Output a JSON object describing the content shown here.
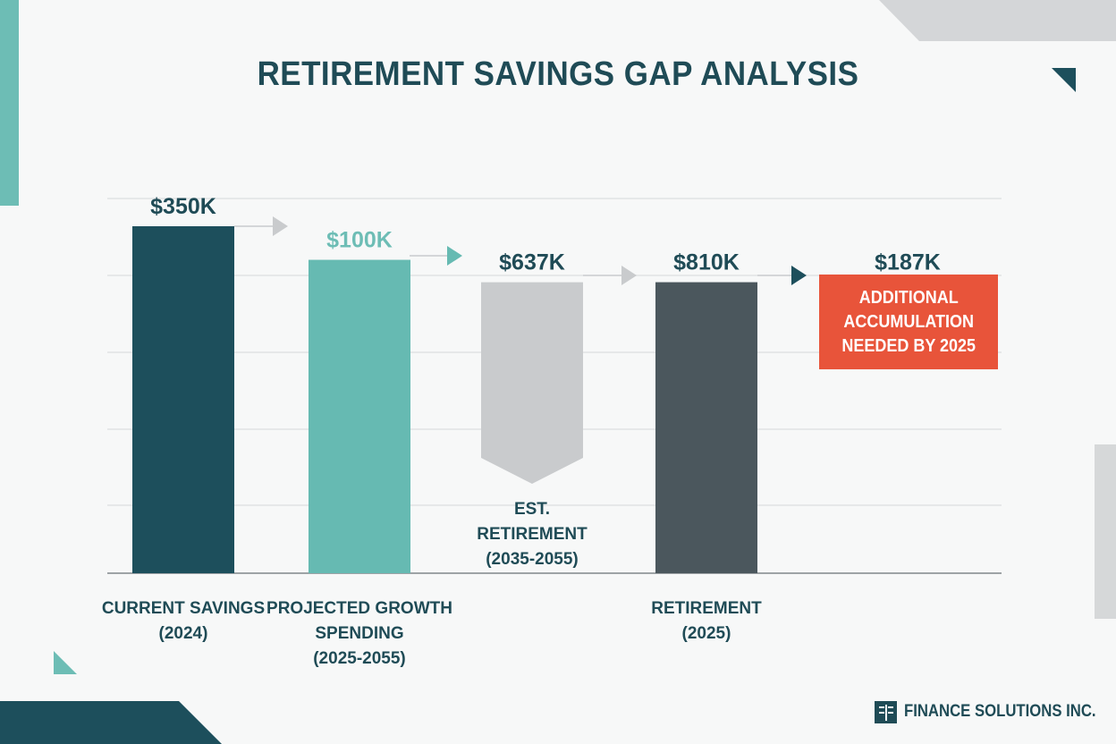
{
  "title": "RETIREMENT SAVINGS GAP ANALYSIS",
  "brand": {
    "name": "FINANCE SOLUTIONS INC.",
    "icon": "finance-logo-icon"
  },
  "colors": {
    "dark_teal": "#1d4f5c",
    "light_teal": "#66bab2",
    "gray": "#c9cbcd",
    "slate": "#4b575d",
    "accent_red": "#e8543a",
    "value_teal_text": "#6dbdb5"
  },
  "chart_data": {
    "type": "bar",
    "title": "RETIREMENT SAVINGS GAP ANALYSIS",
    "ylim": [
      0,
      930
    ],
    "grid": true,
    "legend": "none",
    "bars": [
      {
        "value_label": "$350K",
        "category_lines": [
          "CURRENT SAVINGS",
          "(2024)"
        ],
        "top": 930,
        "bottom": 0,
        "color": "dark_teal"
      },
      {
        "value_label": "$100K",
        "category_lines": [
          "PROJECTED GROWTH",
          "SPENDING",
          "(2025-2055)"
        ],
        "top": 840,
        "bottom": 0,
        "color": "light_teal"
      },
      {
        "value_label": "$637K",
        "category_lines": [
          "EST.",
          "RETIREMENT",
          "(2035-2055)"
        ],
        "top": 780,
        "bottom": 280,
        "color": "gray",
        "shape": "arrow-down"
      },
      {
        "value_label": "$810K",
        "category_lines": [
          "RETIREMENT",
          "(2025)"
        ],
        "top": 780,
        "bottom": 0,
        "color": "slate"
      },
      {
        "value_label": "$187K",
        "category_lines": [],
        "top": 780,
        "bottom": 480,
        "color": "accent_red",
        "note_lines": [
          "ADDITIONAL",
          "ACCUMULATION",
          "NEEDED BY 2025"
        ]
      }
    ]
  }
}
